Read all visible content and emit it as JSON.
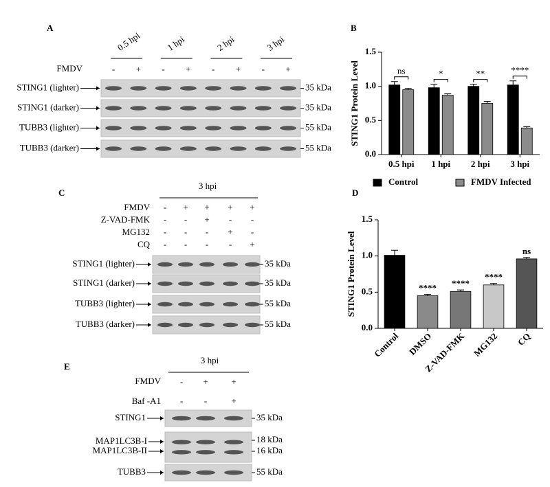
{
  "panels": {
    "A": {
      "label": "A",
      "treatment": "FMDV",
      "timepoints": [
        "0.5 hpi",
        "1 hpi",
        "2 hpi",
        "3 hpi"
      ],
      "signs": [
        "-",
        "+",
        "-",
        "+",
        "-",
        "+",
        "-",
        "+"
      ],
      "rows": [
        {
          "name": "STING1 (lighter)",
          "size": "35 kDa"
        },
        {
          "name": "STING1 (darker)",
          "size": "35 kDa"
        },
        {
          "name": "TUBB3 (lighter)",
          "size": "55 kDa"
        },
        {
          "name": "TUBB3 (darker)",
          "size": "55 kDa"
        }
      ]
    },
    "B": {
      "label": "B"
    },
    "C": {
      "label": "C",
      "time": "3 hpi",
      "treatments": [
        {
          "name": "FMDV",
          "signs": [
            "-",
            "+",
            "+",
            "+",
            "+"
          ]
        },
        {
          "name": "Z-VAD-FMK",
          "signs": [
            "-",
            "-",
            "+",
            "-",
            "-"
          ]
        },
        {
          "name": "MG132",
          "signs": [
            "-",
            "-",
            "-",
            "+",
            "-"
          ]
        },
        {
          "name": "CQ",
          "signs": [
            "-",
            "-",
            "-",
            "-",
            "+"
          ]
        }
      ],
      "rows": [
        {
          "name": "STING1 (lighter)",
          "size": "35 kDa"
        },
        {
          "name": "STING1 (darker)",
          "size": "35 kDa"
        },
        {
          "name": "TUBB3 (lighter)",
          "size": "55 kDa"
        },
        {
          "name": "TUBB3 (darker)",
          "size": "55 kDa"
        }
      ]
    },
    "D": {
      "label": "D"
    },
    "E": {
      "label": "E",
      "time": "3 hpi",
      "treatments": [
        {
          "name": "FMDV",
          "signs": [
            "-",
            "+",
            "+"
          ]
        },
        {
          "name": "Baf -A1",
          "signs": [
            "-",
            "-",
            "+"
          ]
        }
      ],
      "rows": [
        {
          "name": "STING1",
          "size": "35 kDa"
        },
        {
          "name": "MAP1LC3B-I",
          "size": "18 kDa"
        },
        {
          "name": "MAP1LC3B-II",
          "size": "16 kDa"
        },
        {
          "name": "TUBB3",
          "size": "55 kDa"
        }
      ]
    }
  },
  "chart_data": [
    {
      "type": "bar",
      "y_label": "STING1 Protein Level",
      "categories": [
        "0.5 hpi",
        "1 hpi",
        "2 hpi",
        "3 hpi"
      ],
      "series": [
        {
          "name": "Control",
          "color": "#000000",
          "values": [
            1.02,
            0.98,
            1.0,
            1.02
          ],
          "errors": [
            0.05,
            0.05,
            0.03,
            0.06
          ]
        },
        {
          "name": "FMDV Infected",
          "color": "#8c8c8c",
          "values": [
            0.95,
            0.87,
            0.75,
            0.39
          ],
          "errors": [
            0.02,
            0.02,
            0.03,
            0.02
          ]
        }
      ],
      "annotations": [
        "ns",
        "*",
        "**",
        "****"
      ],
      "ylim": [
        0,
        1.5
      ],
      "yticks": [
        {
          "value": 0,
          "label": "0.0"
        },
        {
          "value": 0.5,
          "label": "0.5"
        },
        {
          "value": 1,
          "label": "1.0"
        },
        {
          "value": 1.5,
          "label": "1.5"
        }
      ],
      "legend": "bottom"
    },
    {
      "type": "bar",
      "y_label": "STING1 Protein Level",
      "categories": [
        "Control",
        "DMSO",
        "Z-VAD-FMK",
        "MG132",
        "CQ"
      ],
      "values": [
        1.01,
        0.45,
        0.51,
        0.6,
        0.96
      ],
      "errors": [
        0.07,
        0.02,
        0.02,
        0.02,
        0.02
      ],
      "colors": [
        "#000000",
        "#8a8a8a",
        "#777777",
        "#c8c8c8",
        "#555555"
      ],
      "annotations": [
        null,
        "****",
        "****",
        "****",
        "ns"
      ],
      "ylim": [
        0,
        1.5
      ],
      "yticks": [
        {
          "value": 0,
          "label": "0.0"
        },
        {
          "value": 0.5,
          "label": "0.5"
        },
        {
          "value": 1,
          "label": "1.0"
        },
        {
          "value": 1.5,
          "label": "1.5"
        }
      ]
    }
  ]
}
